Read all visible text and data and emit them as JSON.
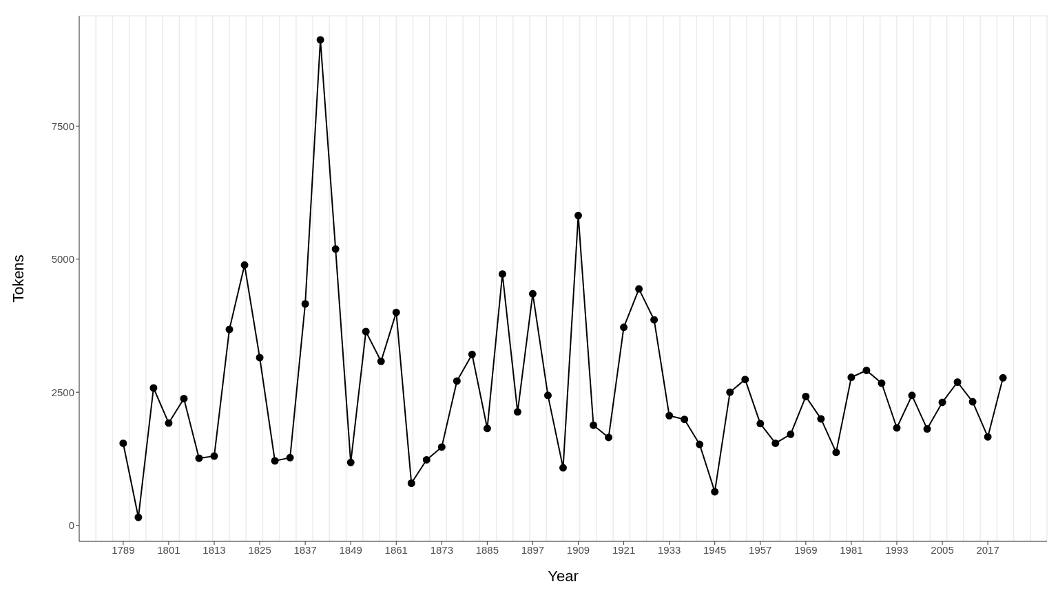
{
  "chart_data": {
    "type": "line",
    "xlabel": "Year",
    "ylabel": "Tokens",
    "x": [
      1789,
      1793,
      1797,
      1801,
      1805,
      1809,
      1813,
      1817,
      1821,
      1825,
      1829,
      1833,
      1837,
      1841,
      1845,
      1849,
      1853,
      1857,
      1861,
      1865,
      1869,
      1873,
      1877,
      1881,
      1885,
      1889,
      1893,
      1897,
      1901,
      1905,
      1909,
      1913,
      1917,
      1921,
      1925,
      1929,
      1933,
      1937,
      1941,
      1945,
      1949,
      1953,
      1957,
      1961,
      1965,
      1969,
      1973,
      1977,
      1981,
      1985,
      1989,
      1993,
      1997,
      2001,
      2005,
      2009,
      2013,
      2017,
      2021
    ],
    "series": [
      {
        "color": "#000000",
        "values": [
          1540,
          150,
          2580,
          1920,
          2380,
          1260,
          1300,
          3680,
          4890,
          3150,
          1210,
          1270,
          4160,
          9120,
          5190,
          1180,
          3640,
          3080,
          4000,
          790,
          1230,
          1470,
          2710,
          3210,
          1820,
          4720,
          2130,
          4350,
          2440,
          1080,
          5820,
          1880,
          1650,
          3720,
          4440,
          3860,
          2060,
          1990,
          1520,
          630,
          2500,
          2740,
          1910,
          1540,
          1710,
          2420,
          2000,
          1370,
          2780,
          2910,
          2670,
          1830,
          2440,
          1810,
          2310,
          2690,
          2320,
          1660,
          2770
        ]
      }
    ],
    "xlim": [
      1777.4,
      2032.6
    ],
    "xticks": [
      1789,
      1801,
      1813,
      1825,
      1837,
      1849,
      1861,
      1873,
      1885,
      1897,
      1909,
      1921,
      1933,
      1945,
      1957,
      1969,
      1981,
      1993,
      2005,
      2017
    ],
    "ylim": [
      -302,
      9572
    ],
    "yticks": [
      0,
      2500,
      5000,
      7500
    ],
    "grid": true,
    "marker": "circle",
    "line_style": "solid"
  }
}
